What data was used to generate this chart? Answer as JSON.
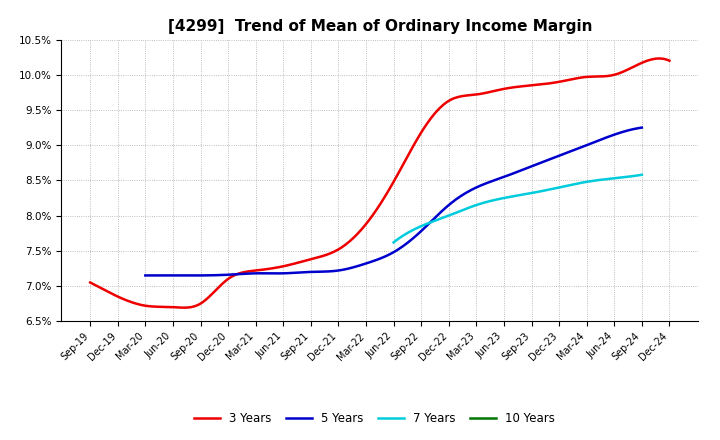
{
  "title": "[4299]  Trend of Mean of Ordinary Income Margin",
  "ylim": [
    0.065,
    0.105
  ],
  "yticks": [
    0.065,
    0.07,
    0.075,
    0.08,
    0.085,
    0.09,
    0.095,
    0.1,
    0.105
  ],
  "ytick_labels": [
    "6.5%",
    "7.0%",
    "7.5%",
    "8.0%",
    "8.5%",
    "9.0%",
    "9.5%",
    "10.0%",
    "10.5%"
  ],
  "x_labels": [
    "Sep-19",
    "Dec-19",
    "Mar-20",
    "Jun-20",
    "Sep-20",
    "Dec-20",
    "Mar-21",
    "Jun-21",
    "Sep-21",
    "Dec-21",
    "Mar-22",
    "Jun-22",
    "Sep-22",
    "Dec-22",
    "Mar-23",
    "Jun-23",
    "Sep-23",
    "Dec-23",
    "Mar-24",
    "Jun-24",
    "Sep-24",
    "Dec-24"
  ],
  "series": {
    "3 Years": {
      "color": "#ee0000",
      "values": [
        0.0705,
        0.0685,
        0.0672,
        0.067,
        0.0675,
        0.071,
        0.0722,
        0.0728,
        0.0738,
        0.0752,
        0.0788,
        0.0848,
        0.0918,
        0.0963,
        0.0972,
        0.098,
        0.0985,
        0.099,
        0.0997,
        0.1,
        0.1017,
        0.102
      ]
    },
    "5 Years": {
      "color": "#0000cc",
      "values": [
        null,
        null,
        0.0715,
        0.0715,
        0.0715,
        0.0716,
        0.0718,
        0.0718,
        0.072,
        0.0722,
        0.0732,
        0.0748,
        0.0778,
        0.0815,
        0.084,
        0.0855,
        0.087,
        0.0885,
        0.09,
        0.0915,
        0.0925,
        null
      ]
    },
    "7 Years": {
      "color": "#00ccdd",
      "values": [
        null,
        null,
        null,
        null,
        null,
        null,
        null,
        null,
        null,
        null,
        null,
        0.0762,
        0.0785,
        0.08,
        0.0815,
        0.0825,
        0.0832,
        0.084,
        0.0848,
        0.0853,
        0.0858,
        null
      ]
    },
    "10 Years": {
      "color": "#007700",
      "values": [
        null,
        null,
        null,
        null,
        null,
        null,
        null,
        null,
        null,
        null,
        null,
        null,
        null,
        null,
        null,
        null,
        null,
        null,
        null,
        null,
        null,
        null
      ]
    }
  },
  "background_color": "#ffffff",
  "grid_color": "#aaaaaa",
  "title_fontsize": 11,
  "legend_fontsize": 8.5,
  "linewidth": 1.8
}
